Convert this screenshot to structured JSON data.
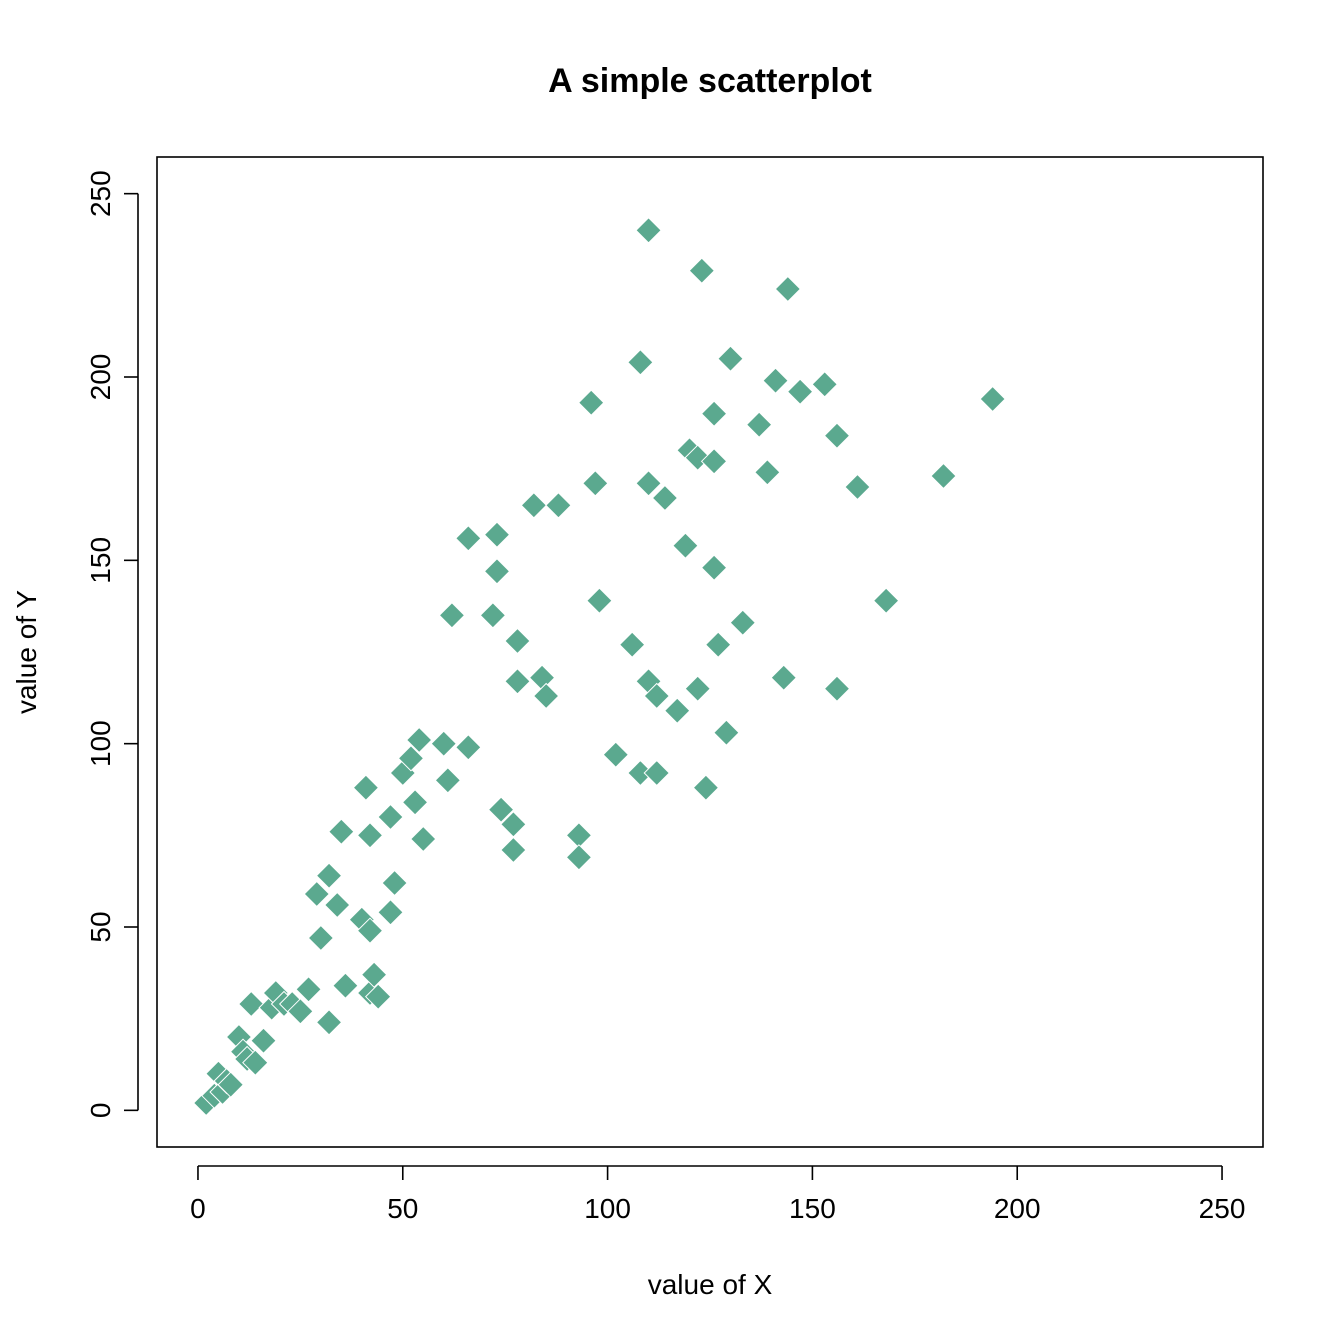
{
  "chart_data": {
    "type": "scatter",
    "title": "A simple scatterplot",
    "xlabel": "value of X",
    "ylabel": "value of Y",
    "xlim": [
      -10,
      260
    ],
    "ylim": [
      -10,
      260
    ],
    "x_ticks": [
      0,
      50,
      100,
      150,
      200,
      250
    ],
    "y_ticks": [
      0,
      50,
      100,
      150,
      200,
      250
    ],
    "grid": false,
    "marker": "diamond",
    "point_color": "#5BA98F",
    "points": [
      [
        2,
        2
      ],
      [
        4,
        4
      ],
      [
        5,
        10
      ],
      [
        6,
        5
      ],
      [
        7,
        8
      ],
      [
        8,
        7
      ],
      [
        10,
        20
      ],
      [
        11,
        16
      ],
      [
        12,
        14
      ],
      [
        13,
        29
      ],
      [
        14,
        13
      ],
      [
        16,
        19
      ],
      [
        18,
        28
      ],
      [
        19,
        32
      ],
      [
        21,
        29
      ],
      [
        23,
        29
      ],
      [
        25,
        27
      ],
      [
        27,
        33
      ],
      [
        29,
        59
      ],
      [
        30,
        47
      ],
      [
        32,
        64
      ],
      [
        32,
        24
      ],
      [
        34,
        56
      ],
      [
        35,
        76
      ],
      [
        36,
        34
      ],
      [
        40,
        52
      ],
      [
        41,
        88
      ],
      [
        42,
        49
      ],
      [
        42,
        75
      ],
      [
        42,
        32
      ],
      [
        43,
        37
      ],
      [
        44,
        31
      ],
      [
        47,
        80
      ],
      [
        47,
        54
      ],
      [
        48,
        62
      ],
      [
        50,
        92
      ],
      [
        52,
        96
      ],
      [
        53,
        84
      ],
      [
        54,
        101
      ],
      [
        55,
        74
      ],
      [
        60,
        100
      ],
      [
        61,
        90
      ],
      [
        62,
        135
      ],
      [
        66,
        99
      ],
      [
        66,
        156
      ],
      [
        72,
        135
      ],
      [
        73,
        157
      ],
      [
        73,
        147
      ],
      [
        74,
        82
      ],
      [
        77,
        78
      ],
      [
        77,
        71
      ],
      [
        78,
        117
      ],
      [
        78,
        128
      ],
      [
        82,
        165
      ],
      [
        84,
        118
      ],
      [
        85,
        113
      ],
      [
        88,
        165
      ],
      [
        93,
        75
      ],
      [
        93,
        69
      ],
      [
        96,
        193
      ],
      [
        97,
        171
      ],
      [
        98,
        139
      ],
      [
        102,
        97
      ],
      [
        106,
        127
      ],
      [
        108,
        92
      ],
      [
        108,
        204
      ],
      [
        110,
        240
      ],
      [
        110,
        171
      ],
      [
        110,
        117
      ],
      [
        112,
        113
      ],
      [
        112,
        92
      ],
      [
        114,
        167
      ],
      [
        117,
        109
      ],
      [
        119,
        154
      ],
      [
        120,
        180
      ],
      [
        122,
        178
      ],
      [
        122,
        115
      ],
      [
        123,
        229
      ],
      [
        124,
        88
      ],
      [
        126,
        190
      ],
      [
        126,
        177
      ],
      [
        126,
        148
      ],
      [
        127,
        127
      ],
      [
        129,
        103
      ],
      [
        130,
        205
      ],
      [
        133,
        133
      ],
      [
        137,
        187
      ],
      [
        139,
        174
      ],
      [
        141,
        199
      ],
      [
        143,
        118
      ],
      [
        144,
        224
      ],
      [
        147,
        196
      ],
      [
        153,
        198
      ],
      [
        156,
        184
      ],
      [
        156,
        115
      ],
      [
        161,
        170
      ],
      [
        168,
        139
      ],
      [
        182,
        173
      ],
      [
        194,
        194
      ]
    ]
  }
}
